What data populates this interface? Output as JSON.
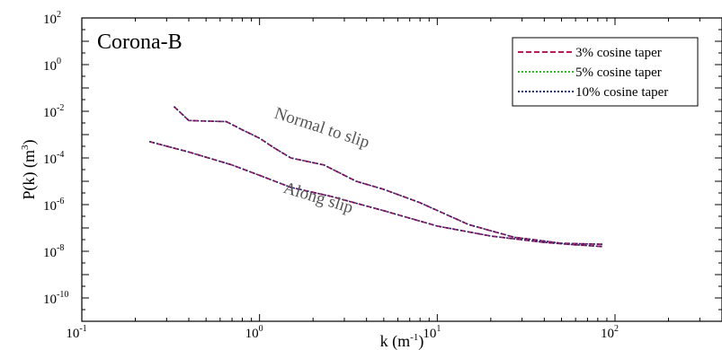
{
  "chart_data": {
    "type": "line",
    "title": "Corona-B",
    "xlabel": {
      "base": "k (m",
      "sup": "-1",
      "close": ")"
    },
    "ylabel": {
      "base": "P(k) (m",
      "sup": "3",
      "close": ")"
    },
    "x_scale": "log",
    "y_scale": "log",
    "xlim": [
      0.1,
      400
    ],
    "ylim": [
      1e-11,
      100
    ],
    "grid": false,
    "legend_position": "top-right",
    "x_ticks": [
      {
        "value": 0.1,
        "base": "10",
        "exp": "-1"
      },
      {
        "value": 1,
        "base": "10",
        "exp": "0"
      },
      {
        "value": 10,
        "base": "10",
        "exp": "1"
      },
      {
        "value": 100,
        "base": "10",
        "exp": "2"
      }
    ],
    "y_ticks": [
      {
        "value": 1e-10,
        "base": "10",
        "exp": "-10"
      },
      {
        "value": 1e-08,
        "base": "10",
        "exp": "-8"
      },
      {
        "value": 1e-06,
        "base": "10",
        "exp": "-6"
      },
      {
        "value": 0.0001,
        "base": "10",
        "exp": "-4"
      },
      {
        "value": 0.01,
        "base": "10",
        "exp": "-2"
      },
      {
        "value": 1,
        "base": "10",
        "exp": "0"
      },
      {
        "value": 100,
        "base": "10",
        "exp": "2"
      }
    ],
    "legend": [
      {
        "label": "3% cosine taper",
        "color": "#c2185b",
        "dash": "dashed"
      },
      {
        "label": "5% cosine taper",
        "color": "#2db82d",
        "dash": "dotted"
      },
      {
        "label": "10% cosine taper",
        "color": "#1a237e",
        "dash": "dotted"
      }
    ],
    "annotations": [
      {
        "text": "Normal to slip",
        "x": 2.2,
        "y": 0.0012,
        "angle": 18
      },
      {
        "text": "Along slip",
        "x": 2.1,
        "y": 1.2e-06,
        "angle": 17
      }
    ],
    "curves": [
      {
        "group": "Normal to slip",
        "points": [
          [
            0.33,
            0.016
          ],
          [
            0.4,
            0.004
          ],
          [
            0.5,
            0.0038
          ],
          [
            0.65,
            0.0036
          ],
          [
            0.8,
            0.0016
          ],
          [
            1.0,
            0.0007
          ],
          [
            1.2,
            0.00028
          ],
          [
            1.5,
            0.0001
          ],
          [
            2.3,
            5e-05
          ],
          [
            3.5,
            1e-05
          ],
          [
            5.0,
            4.5e-06
          ],
          [
            8.0,
            1.2e-06
          ],
          [
            15.0,
            1.4e-07
          ],
          [
            27.0,
            4e-08
          ],
          [
            50.0,
            2.2e-08
          ],
          [
            85.0,
            2e-08
          ]
        ]
      },
      {
        "group": "Along slip",
        "points": [
          [
            0.24,
            0.0005
          ],
          [
            0.4,
            0.00018
          ],
          [
            0.7,
            5e-05
          ],
          [
            1.0,
            1.8e-05
          ],
          [
            1.5,
            5.5e-06
          ],
          [
            2.5,
            2.3e-06
          ],
          [
            5.0,
            5.5e-07
          ],
          [
            10.0,
            1.2e-07
          ],
          [
            20.0,
            4.5e-08
          ],
          [
            40.0,
            2.4e-08
          ],
          [
            60.0,
            1.9e-08
          ],
          [
            85.0,
            1.6e-08
          ]
        ]
      }
    ]
  }
}
